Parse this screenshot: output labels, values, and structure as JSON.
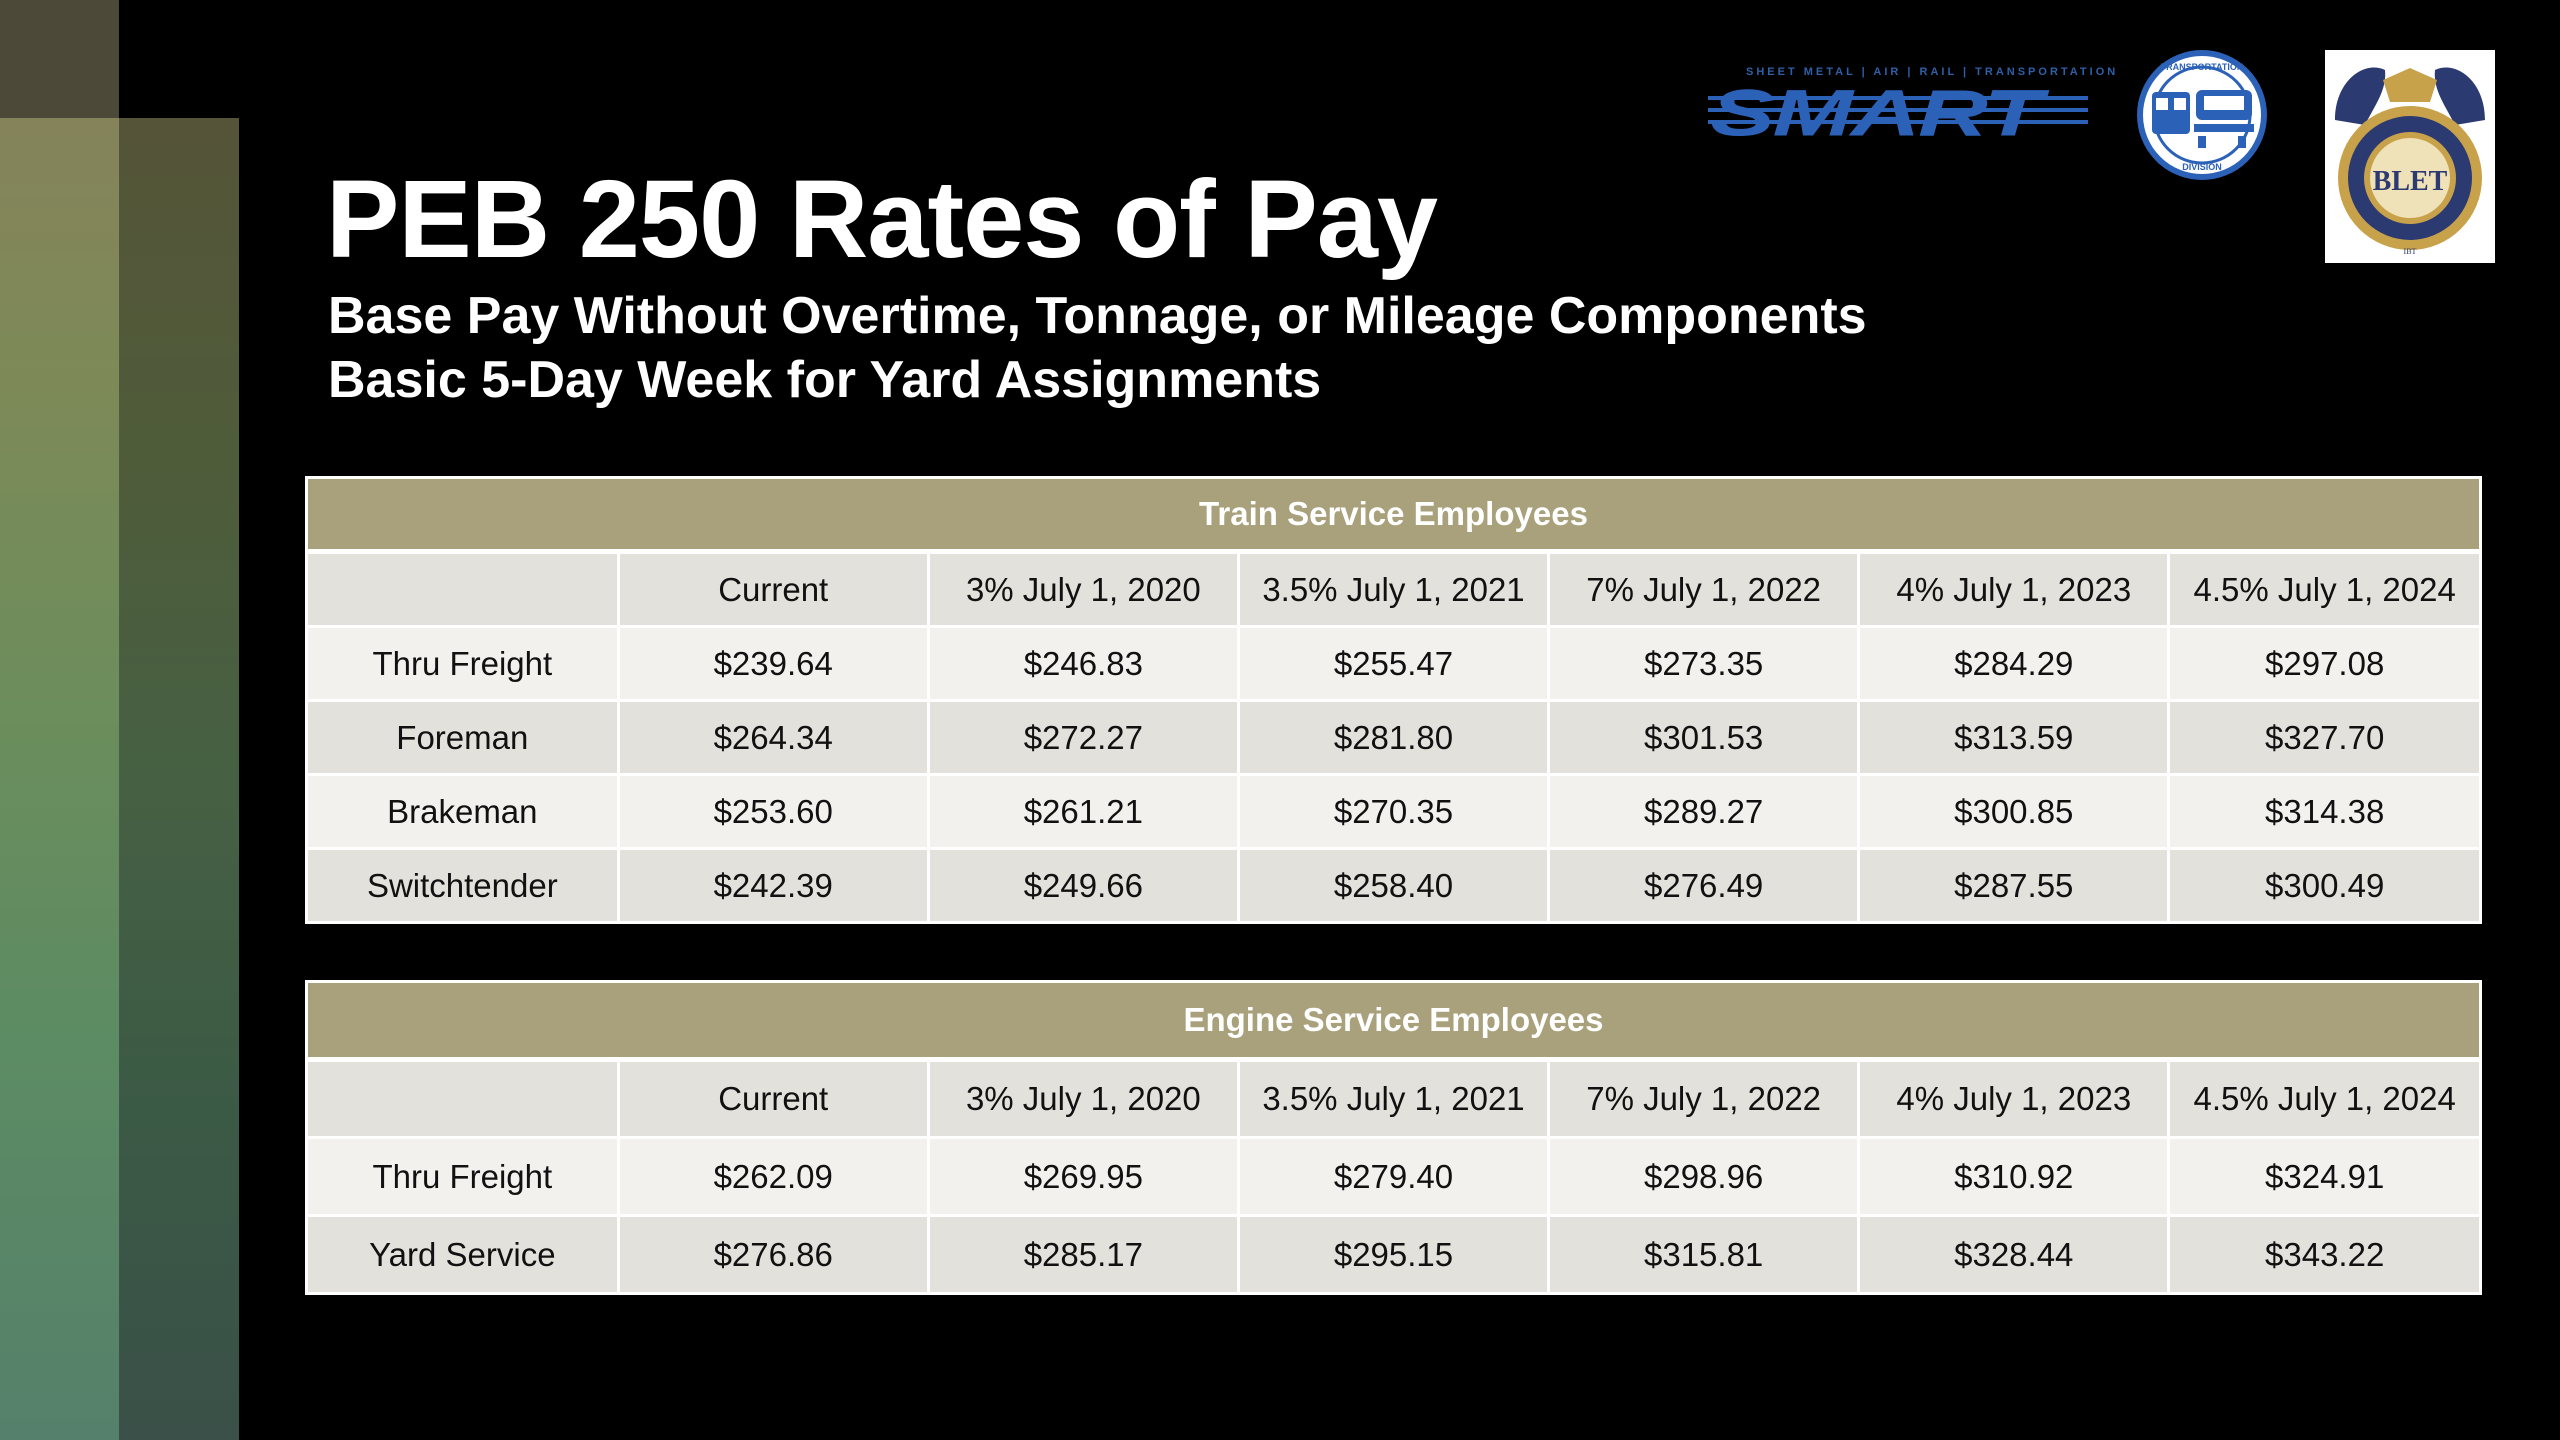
{
  "title": "PEB 250 Rates of Pay",
  "subtitle_1": "Base Pay Without Overtime, Tonnage, or Mileage Components",
  "subtitle_2": "Basic 5-Day Week for Yard Assignments",
  "logos": {
    "smart_tagline": "SHEET METAL | AIR | RAIL | TRANSPORTATION",
    "smart_word": "SMART",
    "td_seal_top": "TRANSPORTATION",
    "td_seal_bottom": "DIVISION",
    "ble_ring": "Brotherhood of Locomotive Engineers and Trainmen",
    "ble_bottom": "IBT",
    "ble_monogram": "BLET"
  },
  "colors": {
    "header_band": "#a8a17b",
    "row_light": "#f2f1ee",
    "row_dark": "#e3e1dc",
    "smart_blue": "#2b62b8"
  },
  "train_table": {
    "heading": "Train Service Employees",
    "columns": [
      "",
      "Current",
      "3% July 1, 2020",
      "3.5% July 1, 2021",
      "7% July 1, 2022",
      "4% July 1, 2023",
      "4.5% July 1, 2024"
    ],
    "rows": [
      [
        "Thru Freight",
        "$239.64",
        "$246.83",
        "$255.47",
        "$273.35",
        "$284.29",
        "$297.08"
      ],
      [
        "Foreman",
        "$264.34",
        "$272.27",
        "$281.80",
        "$301.53",
        "$313.59",
        "$327.70"
      ],
      [
        "Brakeman",
        "$253.60",
        "$261.21",
        "$270.35",
        "$289.27",
        "$300.85",
        "$314.38"
      ],
      [
        "Switchtender",
        "$242.39",
        "$249.66",
        "$258.40",
        "$276.49",
        "$287.55",
        "$300.49"
      ]
    ]
  },
  "engine_table": {
    "heading": "Engine Service Employees",
    "columns": [
      "",
      "Current",
      "3% July 1, 2020",
      "3.5% July 1, 2021",
      "7% July 1, 2022",
      "4% July 1, 2023",
      "4.5% July 1, 2024"
    ],
    "rows": [
      [
        "Thru Freight",
        "$262.09",
        "$269.95",
        "$279.40",
        "$298.96",
        "$310.92",
        "$324.91"
      ],
      [
        "Yard Service",
        "$276.86",
        "$285.17",
        "$295.15",
        "$315.81",
        "$328.44",
        "$343.22"
      ]
    ]
  }
}
